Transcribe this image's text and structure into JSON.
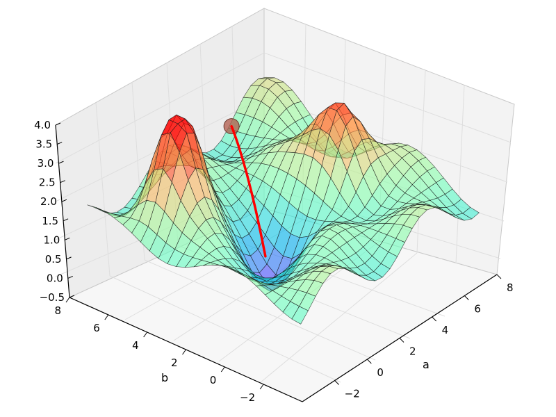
{
  "chart_data": {
    "type": "surface3d",
    "title": "",
    "xlabel": "a",
    "ylabel": "b",
    "zlabel": "",
    "xlim": [
      -4,
      8
    ],
    "ylim": [
      -4,
      8
    ],
    "zlim": [
      -0.5,
      4.0
    ],
    "x_ticks": [
      "−2",
      "0",
      "2",
      "4",
      "6",
      "8"
    ],
    "y_ticks": [
      "−2",
      "0",
      "2",
      "4",
      "6",
      "8"
    ],
    "z_ticks": [
      "−0.5",
      "0.0",
      "0.5",
      "1.0",
      "1.5",
      "2.0",
      "2.5",
      "3.0",
      "3.5",
      "4.0"
    ],
    "colormap": "rainbow",
    "grid": true,
    "surface": {
      "description": "bumpy surface with two red peaks, a deep purple basin and low ridges",
      "peaks": [
        {
          "a": -1.0,
          "b": 5.0,
          "z": 4.0
        },
        {
          "a": 5.0,
          "b": 1.5,
          "z": 3.4
        }
      ]
    },
    "descent_path": {
      "color": "#ff0000",
      "start": {
        "a": 3.0,
        "b": 5.5,
        "z": 2.6
      },
      "end": {
        "a": 1.5,
        "b": 2.5,
        "z": 0.3
      }
    },
    "colors": {
      "path": "#ff0000",
      "pane": "#f2f2f2",
      "grid": "#e2e2e2",
      "surface_edge": "#1a1a1a"
    }
  }
}
